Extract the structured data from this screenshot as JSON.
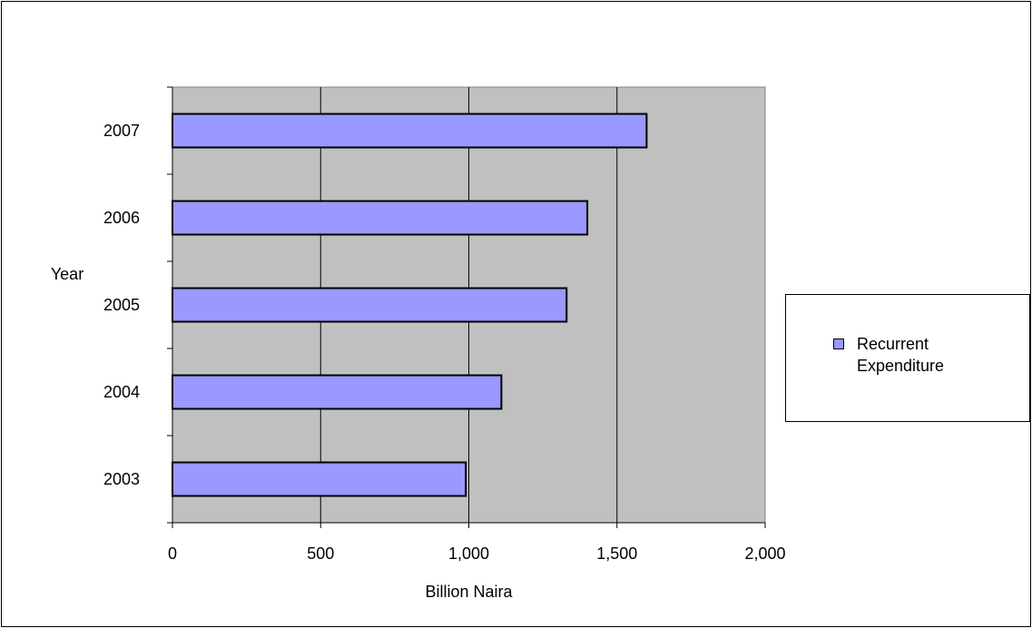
{
  "colors": {
    "plot_background": "#c0c0c0",
    "bar_fill": "#9999ff",
    "bar_stroke": "#000000",
    "gridline": "#000000"
  },
  "chart_data": {
    "type": "bar",
    "orientation": "horizontal",
    "categories": [
      "2003",
      "2004",
      "2005",
      "2006",
      "2007"
    ],
    "series": [
      {
        "name": "Recurrent Expenditure",
        "values": [
          990,
          1110,
          1330,
          1400,
          1600
        ]
      }
    ],
    "xlabel": "Billion Naira",
    "ylabel": "Year",
    "xlim": [
      0,
      2000
    ],
    "x_ticks": [
      0,
      500,
      1000,
      1500,
      2000
    ],
    "x_tick_labels": [
      "0",
      "500",
      "1,000",
      "1,500",
      "2,000"
    ],
    "grid": "vertical",
    "legend": {
      "position": "right",
      "entries": [
        "Recurrent\nExpenditure"
      ]
    }
  }
}
